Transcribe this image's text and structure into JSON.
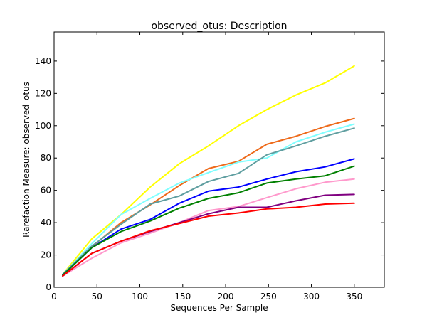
{
  "chart_data": {
    "type": "line",
    "title": "observed_otus: Description",
    "xlabel": "Sequences Per Sample",
    "ylabel": "Rarefaction Measure: observed_otus",
    "xlim": [
      0,
      385
    ],
    "ylim": [
      0,
      158
    ],
    "x_ticks": [
      "0",
      "50",
      "100",
      "150",
      "200",
      "250",
      "300",
      "350"
    ],
    "y_ticks": [
      "0",
      "20",
      "40",
      "60",
      "80",
      "100",
      "120",
      "140"
    ],
    "grid": false,
    "legend": "none",
    "x": [
      10,
      44,
      78,
      112,
      146,
      180,
      215,
      248,
      282,
      316,
      350
    ],
    "series": [
      {
        "color": "#ffff00",
        "values": [
          8,
          30,
          45,
          62,
          76.5,
          87.5,
          100,
          110,
          119,
          126.5,
          137
        ]
      },
      {
        "color": "#ee6a1a",
        "values": [
          8,
          25,
          40,
          51,
          63,
          73.5,
          78,
          88.5,
          93.5,
          99.5,
          104.5
        ]
      },
      {
        "color": "#80ffff",
        "values": [
          8,
          27,
          45,
          55,
          64.5,
          71,
          77.5,
          80,
          90,
          96,
          101
        ]
      },
      {
        "color": "#5f9ea0",
        "values": [
          8,
          25.5,
          39,
          51.5,
          56.5,
          65.5,
          70.5,
          82,
          87.5,
          93.5,
          98.5
        ]
      },
      {
        "color": "#0000ff",
        "values": [
          7.5,
          24.5,
          36,
          42,
          52,
          59.5,
          62,
          67,
          71.5,
          74.5,
          79.5
        ]
      },
      {
        "color": "#008000",
        "values": [
          7.5,
          24.5,
          34.5,
          41,
          49,
          55,
          58.5,
          64.5,
          67,
          69,
          75
        ]
      },
      {
        "color": "#ff99cc",
        "values": [
          7,
          18,
          27.5,
          33.5,
          40,
          47.5,
          50,
          55.5,
          61,
          65,
          67
        ]
      },
      {
        "color": "#800080",
        "values": [
          7,
          21,
          28.5,
          34.5,
          40,
          45.5,
          49.5,
          49.5,
          53.5,
          57,
          57.5
        ]
      },
      {
        "color": "#ff0000",
        "values": [
          7,
          21,
          28.5,
          35,
          39.5,
          44,
          46,
          48.5,
          49.5,
          51.5,
          52
        ]
      }
    ]
  }
}
